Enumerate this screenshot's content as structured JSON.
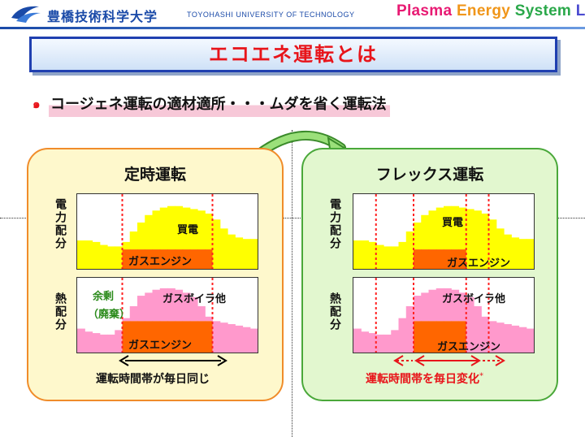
{
  "header": {
    "university_jp": "豊橋技術科学大学",
    "university_en": "TOYOHASHI UNIVERSITY OF TECHNOLOGY",
    "lab_parts": [
      "Plasma",
      " Energy",
      " System",
      " Lab."
    ]
  },
  "title": "エコエネ運転とは",
  "subtitle": "コージェネ運転の適材適所・・・ムダを省く運転法",
  "bullet_icon": "spiral-bullet-icon",
  "colors": {
    "purchased": "#ffff00",
    "gas_engine": "#ff6600",
    "boiler": "#ff99cc",
    "surplus": "#22cc33",
    "marker": "#ff2222"
  },
  "fixed": {
    "title": "定時運転",
    "power_axis": "電力配分",
    "heat_axis": "熱配分",
    "power_labels": {
      "purchased": "買電",
      "engine": "ガスエンジン"
    },
    "heat_labels": {
      "boiler": "ガスボイラ他",
      "engine": "ガスエンジン",
      "surplus": "余剰",
      "waste": "（廃棄）"
    },
    "caption": "運転時間帯が毎日同じ"
  },
  "flex": {
    "title": "フレックス運転",
    "power_axis": "電力配分",
    "heat_axis": "熱配分",
    "power_labels": {
      "purchased": "買電",
      "engine": "ガスエンジン"
    },
    "heat_labels": {
      "boiler": "ガスボイラ他",
      "engine": "ガスエンジン"
    },
    "caption": "運転時間帯を毎日変化",
    "caption_mark": "*"
  },
  "profiles": {
    "power_demand": [
      0.38,
      0.38,
      0.36,
      0.32,
      0.3,
      0.3,
      0.36,
      0.5,
      0.62,
      0.72,
      0.78,
      0.82,
      0.84,
      0.84,
      0.82,
      0.8,
      0.78,
      0.74,
      0.66,
      0.54,
      0.46,
      0.42,
      0.4,
      0.4
    ],
    "heat_demand": [
      0.32,
      0.28,
      0.26,
      0.24,
      0.24,
      0.3,
      0.46,
      0.62,
      0.76,
      0.8,
      0.84,
      0.86,
      0.86,
      0.84,
      0.8,
      0.74,
      0.62,
      0.48,
      0.42,
      0.4,
      0.38,
      0.36,
      0.34,
      0.32
    ],
    "engine_power_level": 0.26,
    "engine_heat_level": 0.42,
    "fixed_window": [
      6,
      17
    ],
    "flex_window": [
      8,
      14
    ]
  }
}
